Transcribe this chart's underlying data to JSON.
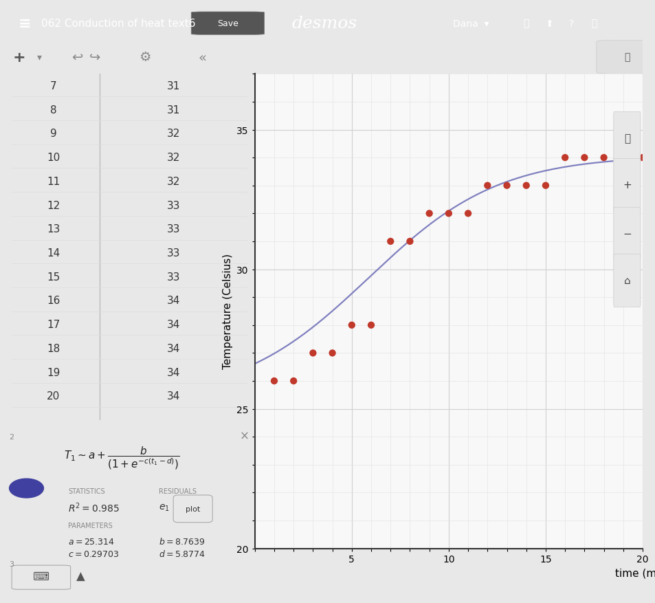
{
  "time_data": [
    1,
    2,
    3,
    4,
    5,
    6,
    7,
    8,
    9,
    10,
    11,
    12,
    13,
    14,
    15,
    16,
    17,
    18,
    19,
    20
  ],
  "temp_data": [
    26,
    26,
    27,
    27,
    28,
    28,
    31,
    31,
    32,
    32,
    32,
    33,
    33,
    33,
    33,
    34,
    34,
    34,
    34,
    34
  ],
  "table_rows_visible": [
    [
      7,
      31
    ],
    [
      8,
      31
    ],
    [
      9,
      32
    ],
    [
      10,
      32
    ],
    [
      11,
      32
    ],
    [
      12,
      33
    ],
    [
      13,
      33
    ],
    [
      14,
      33
    ],
    [
      15,
      33
    ],
    [
      16,
      34
    ],
    [
      17,
      34
    ],
    [
      18,
      34
    ],
    [
      19,
      34
    ],
    [
      20,
      34
    ]
  ],
  "a": 25.314,
  "b": 8.7639,
  "c": 0.29703,
  "d": 5.8774,
  "xlim": [
    0,
    20
  ],
  "ylim": [
    20,
    37
  ],
  "xtick_vals": [
    5,
    10,
    15,
    20
  ],
  "ytick_vals": [
    20,
    25,
    30,
    35
  ],
  "xlabel": "time (min)",
  "ylabel": "Temperature (Celsius)",
  "dot_color": "#c0392b",
  "curve_color": "#8080c0",
  "graph_bg": "#f8f8f8",
  "panel_bg": "#ffffff",
  "top_bar_bg": "#404040",
  "top_bar_text": "#ffffff",
  "title_text": "062 Conduction of heat text6",
  "grid_major_color": "#d0d0d0",
  "grid_minor_color": "#e0e0e0",
  "formula_text": "T₁ ∼ a + b / (1 + e^{-c(t₁ - d)})",
  "r2_text": "R² = 0.985",
  "params_text": "a = 25.314    b = 8.7639\nc = 0.29703  d = 5.8774",
  "dot_size": 55,
  "curve_lw": 1.6
}
